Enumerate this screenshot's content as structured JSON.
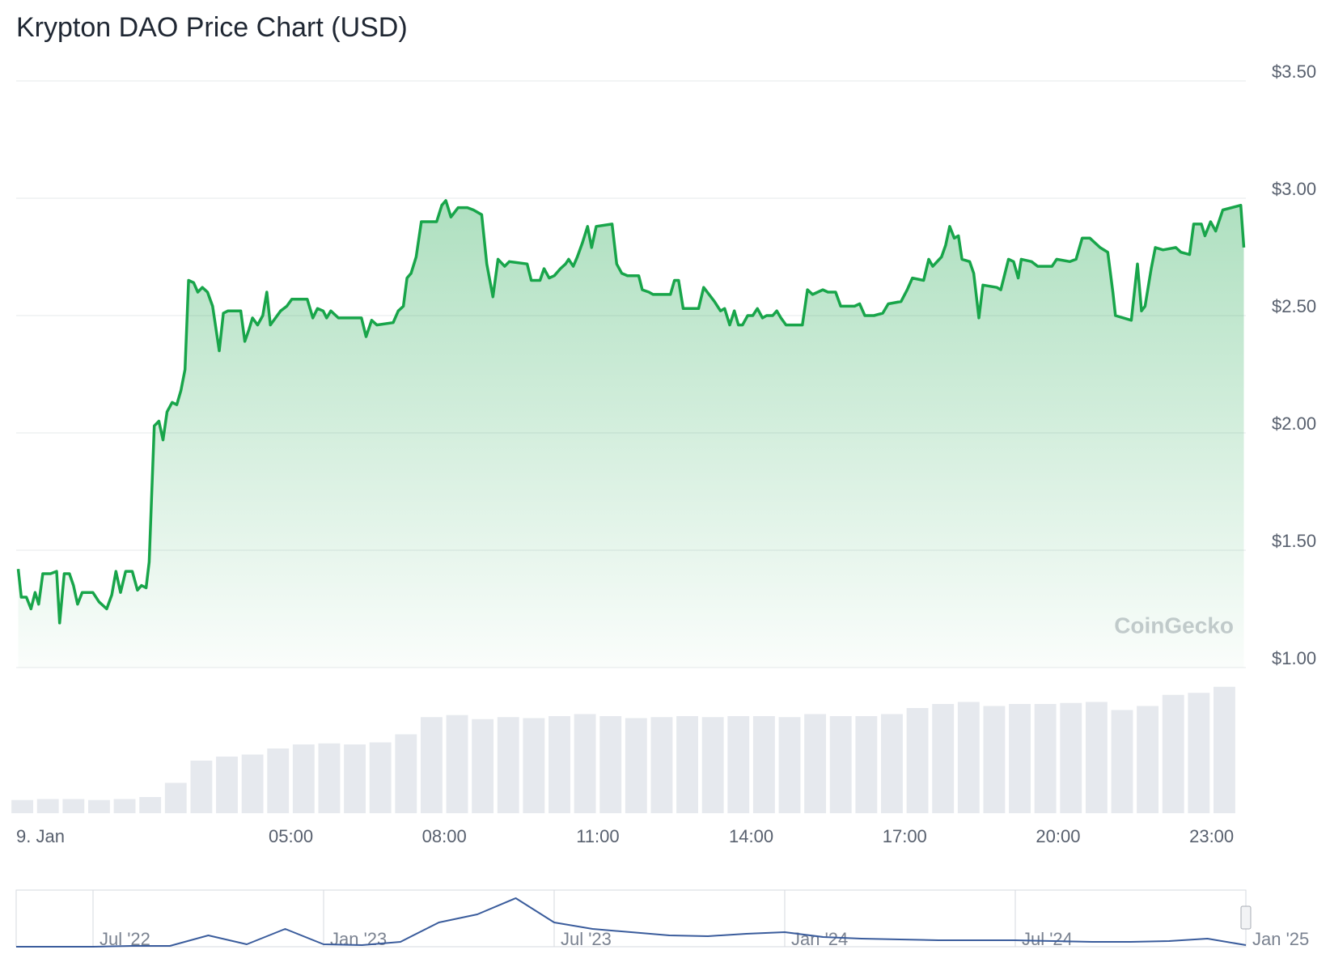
{
  "chart_data": [
    {
      "type": "line",
      "title": "Krypton DAO Price Chart (USD)",
      "watermark": "CoinGecko",
      "color": "#18a54a",
      "grid": true,
      "x": [
        -0.33,
        -0.27,
        -0.17,
        -0.08,
        0,
        0.07,
        0.15,
        0.3,
        0.42,
        0.48,
        0.57,
        0.67,
        0.75,
        0.83,
        0.92,
        1.13,
        1.25,
        1.4,
        1.5,
        1.58,
        1.67,
        1.77,
        1.9,
        2,
        2.08,
        2.17,
        2.23,
        2.33,
        2.42,
        2.5,
        2.58,
        2.68,
        2.77,
        2.85,
        2.93,
        3,
        3.1,
        3.18,
        3.27,
        3.37,
        3.47,
        3.6,
        3.68,
        3.77,
        4.02,
        4.1,
        4.18,
        4.25,
        4.35,
        4.45,
        4.53,
        4.6,
        4.8,
        4.92,
        5.02,
        5.32,
        5.43,
        5.52,
        5.63,
        5.7,
        5.78,
        5.93,
        6.38,
        6.47,
        6.58,
        6.68,
        7,
        7.1,
        7.2,
        7.27,
        7.35,
        7.45,
        7.55,
        7.85,
        7.95,
        8.03,
        8.13,
        8.27,
        8.45,
        8.57,
        8.73,
        8.83,
        8.95,
        9.05,
        9.18,
        9.27,
        9.62,
        9.7,
        9.87,
        9.95,
        10.05,
        10.15,
        10.27,
        10.37,
        10.43,
        10.52,
        10.6,
        10.7,
        10.8,
        10.88,
        10.97,
        11.28,
        11.37,
        11.47,
        11.58,
        11.8,
        11.87,
        12,
        12.08,
        12.42,
        12.5,
        12.58,
        12.67,
        12.97,
        13.07,
        13.28,
        13.4,
        13.48,
        13.58,
        13.67,
        13.75,
        13.83,
        13.93,
        14.03,
        14.12,
        14.22,
        14.3,
        14.42,
        14.5,
        14.58,
        14.68,
        14.77,
        15,
        15.1,
        15.2,
        15.4,
        15.5,
        15.65,
        15.75,
        16.02,
        16.12,
        16.22,
        16.4,
        16.57,
        16.68,
        16.93,
        17.05,
        17.15,
        17.37,
        17.47,
        17.55,
        17.72,
        17.8,
        17.88,
        17.97,
        18.05,
        18.12,
        18.27,
        18.35,
        18.45,
        18.53,
        18.8,
        18.88,
        19.03,
        19.13,
        19.22,
        19.28,
        19.48,
        19.6,
        19.88,
        19.97,
        20.23,
        20.35,
        20.47,
        20.62,
        20.82,
        20.97,
        21.07,
        21.12,
        21.43,
        21.55,
        21.63,
        21.7,
        21.82,
        21.9,
        22.05,
        22.3,
        22.4,
        22.57,
        22.65,
        22.8,
        22.87,
        22.98,
        23.08,
        23.22,
        23.57,
        23.63
      ],
      "values": [
        1.42,
        1.3,
        1.3,
        1.25,
        1.32,
        1.27,
        1.4,
        1.4,
        1.41,
        1.19,
        1.4,
        1.4,
        1.35,
        1.27,
        1.32,
        1.32,
        1.28,
        1.25,
        1.31,
        1.41,
        1.32,
        1.41,
        1.41,
        1.33,
        1.35,
        1.34,
        1.45,
        2.03,
        2.05,
        1.97,
        2.09,
        2.13,
        2.12,
        2.18,
        2.27,
        2.65,
        2.64,
        2.6,
        2.62,
        2.6,
        2.54,
        2.35,
        2.51,
        2.52,
        2.52,
        2.39,
        2.44,
        2.49,
        2.46,
        2.5,
        2.6,
        2.46,
        2.52,
        2.54,
        2.57,
        2.57,
        2.49,
        2.53,
        2.52,
        2.49,
        2.52,
        2.49,
        2.49,
        2.41,
        2.48,
        2.46,
        2.47,
        2.52,
        2.54,
        2.66,
        2.68,
        2.75,
        2.9,
        2.9,
        2.97,
        2.99,
        2.92,
        2.96,
        2.96,
        2.95,
        2.93,
        2.72,
        2.58,
        2.74,
        2.71,
        2.73,
        2.72,
        2.65,
        2.65,
        2.7,
        2.66,
        2.67,
        2.7,
        2.72,
        2.74,
        2.71,
        2.75,
        2.81,
        2.88,
        2.79,
        2.88,
        2.89,
        2.72,
        2.68,
        2.67,
        2.67,
        2.61,
        2.6,
        2.59,
        2.59,
        2.65,
        2.65,
        2.53,
        2.53,
        2.62,
        2.56,
        2.52,
        2.53,
        2.46,
        2.52,
        2.46,
        2.46,
        2.5,
        2.5,
        2.53,
        2.49,
        2.5,
        2.5,
        2.52,
        2.49,
        2.46,
        2.46,
        2.46,
        2.61,
        2.59,
        2.61,
        2.6,
        2.6,
        2.54,
        2.54,
        2.55,
        2.5,
        2.5,
        2.51,
        2.55,
        2.56,
        2.61,
        2.66,
        2.65,
        2.74,
        2.71,
        2.75,
        2.8,
        2.88,
        2.83,
        2.84,
        2.74,
        2.73,
        2.68,
        2.49,
        2.63,
        2.62,
        2.61,
        2.74,
        2.73,
        2.66,
        2.74,
        2.73,
        2.71,
        2.71,
        2.74,
        2.73,
        2.74,
        2.83,
        2.83,
        2.79,
        2.77,
        2.6,
        2.5,
        2.48,
        2.72,
        2.52,
        2.54,
        2.7,
        2.79,
        2.78,
        2.79,
        2.77,
        2.76,
        2.89,
        2.89,
        2.84,
        2.9,
        2.86,
        2.95,
        2.97,
        2.79
      ],
      "xlim": [
        -0.37,
        23.67
      ],
      "xticks": [
        {
          "value": 0,
          "label": "9. Jan"
        },
        {
          "value": 5,
          "label": "05:00"
        },
        {
          "value": 8,
          "label": "08:00"
        },
        {
          "value": 11,
          "label": "11:00"
        },
        {
          "value": 14,
          "label": "14:00"
        },
        {
          "value": 17,
          "label": "17:00"
        },
        {
          "value": 20,
          "label": "20:00"
        },
        {
          "value": 23,
          "label": "23:00"
        }
      ],
      "ylim": [
        1.0,
        3.5
      ],
      "yticks": [
        {
          "value": 1.0,
          "label": "$1.00"
        },
        {
          "value": 1.5,
          "label": "$1.50"
        },
        {
          "value": 2.0,
          "label": "$2.00"
        },
        {
          "value": 2.5,
          "label": "$2.50"
        },
        {
          "value": 3.0,
          "label": "$3.00"
        },
        {
          "value": 3.5,
          "label": "$3.50"
        }
      ]
    },
    {
      "type": "bar",
      "color": "#e6e9ee",
      "x": [
        -0.25,
        0.25,
        0.75,
        1.25,
        1.75,
        2.25,
        2.75,
        3.25,
        3.75,
        4.25,
        4.75,
        5.25,
        5.75,
        6.25,
        6.75,
        7.25,
        7.75,
        8.25,
        8.75,
        9.25,
        9.75,
        10.25,
        10.75,
        11.25,
        11.75,
        12.25,
        12.75,
        13.25,
        13.75,
        14.25,
        14.75,
        15.25,
        15.75,
        16.25,
        16.75,
        17.25,
        17.75,
        18.25,
        18.75,
        19.25,
        19.75,
        20.25,
        20.75,
        21.25,
        21.75,
        22.25,
        22.75,
        23.25
      ],
      "values": [
        13,
        14,
        14,
        13,
        14,
        16,
        30,
        52,
        56,
        58,
        64,
        68,
        69,
        68,
        70,
        78,
        95,
        97,
        93,
        95,
        94,
        96,
        98,
        96,
        94,
        95,
        96,
        95,
        96,
        96,
        95,
        98,
        96,
        96,
        98,
        104,
        108,
        110,
        106,
        108,
        108,
        109,
        110,
        102,
        106,
        117,
        119,
        125
      ],
      "xlim": [
        -0.37,
        23.67
      ],
      "ylim": [
        0,
        140
      ]
    },
    {
      "type": "line",
      "color": "#3a5c9c",
      "x": [
        "2022-05",
        "2022-06",
        "2022-07",
        "2022-08",
        "2022-09",
        "2022-10",
        "2022-11",
        "2022-12",
        "2023-01",
        "2023-02",
        "2023-03",
        "2023-04",
        "2023-05",
        "2023-06",
        "2023-07",
        "2023-08",
        "2023-09",
        "2023-10",
        "2023-11",
        "2023-12",
        "2024-01",
        "2024-02",
        "2024-03",
        "2024-04",
        "2024-05",
        "2024-06",
        "2024-07",
        "2024-08",
        "2024-09",
        "2024-10",
        "2024-11",
        "2024-12",
        "2025-01"
      ],
      "values": [
        0,
        0,
        0,
        1,
        1,
        14,
        3,
        22,
        3,
        2,
        6,
        30,
        40,
        60,
        30,
        22,
        18,
        14,
        13,
        16,
        18,
        12,
        10,
        9,
        8,
        8,
        8,
        7,
        6,
        6,
        7,
        10,
        2
      ],
      "xlim": [
        "2022-05",
        "2025-01"
      ],
      "ylim": [
        0,
        70
      ],
      "xticks": [
        {
          "value": "2022-07",
          "label": "Jul '22"
        },
        {
          "value": "2023-01",
          "label": "Jan '23"
        },
        {
          "value": "2023-07",
          "label": "Jul '23"
        },
        {
          "value": "2024-01",
          "label": "Jan '24"
        },
        {
          "value": "2024-07",
          "label": "Jul '24"
        },
        {
          "value": "2025-01",
          "label": "Jan '25"
        }
      ]
    }
  ]
}
